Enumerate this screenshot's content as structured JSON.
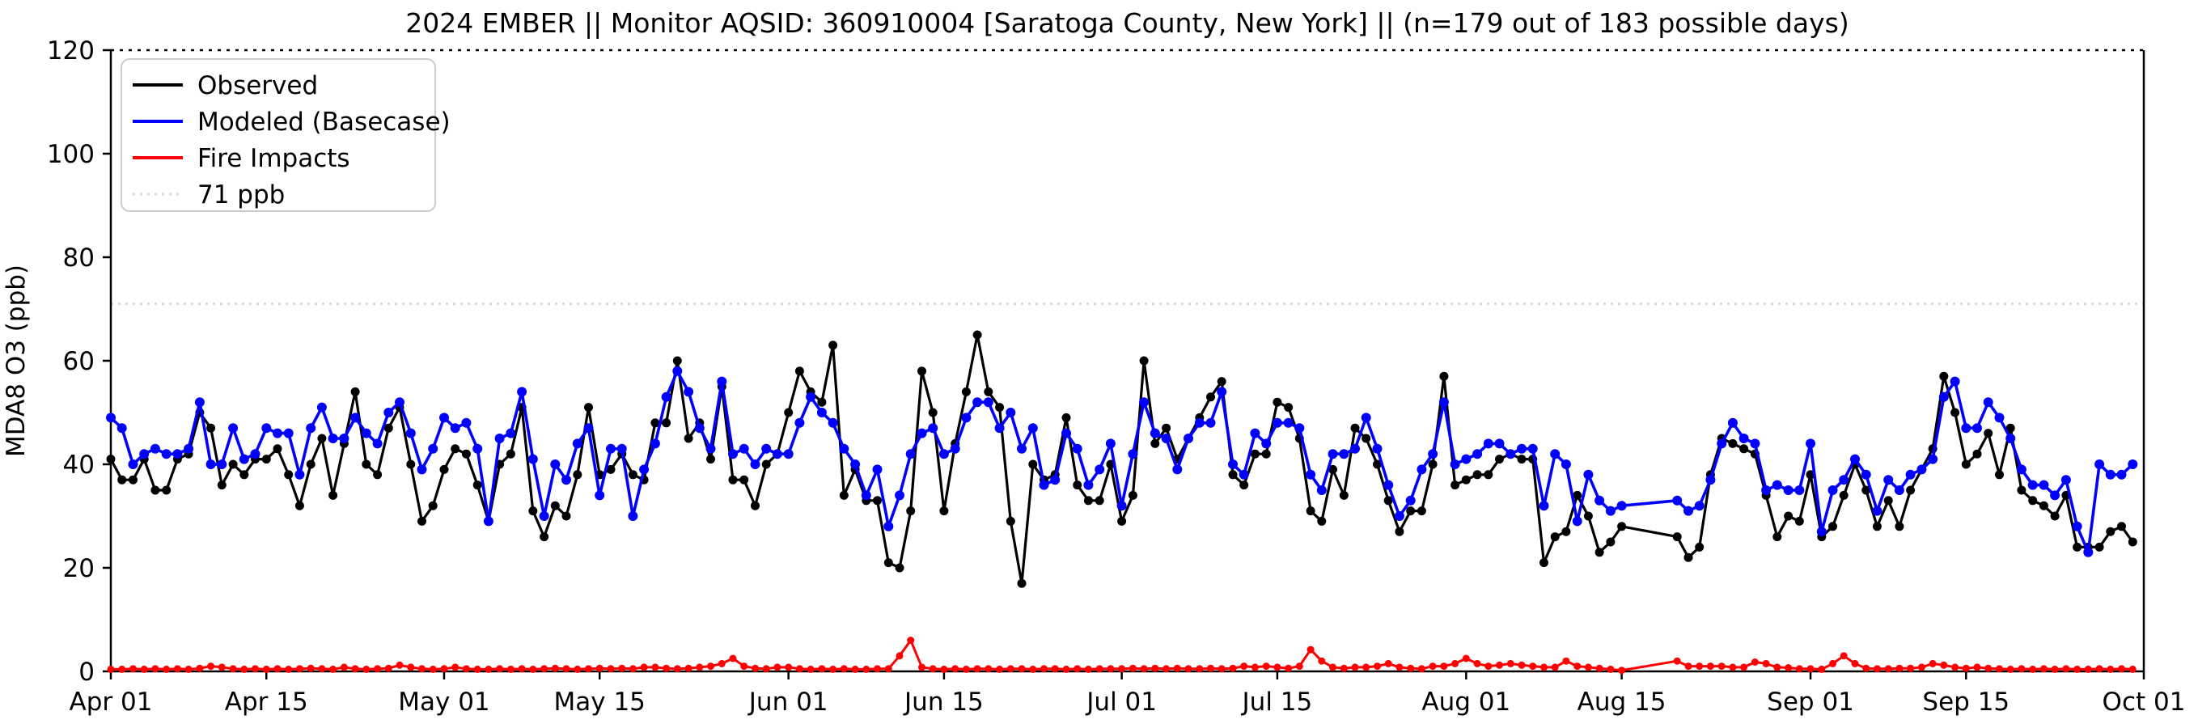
{
  "title": "2024 EMBER || Monitor AQSID: 360910004 [Saratoga County, New York] || (n=179 out of 183 possible days)",
  "axes": {
    "ylabel": "MDA8 O3 (ppb)",
    "ylim": [
      0,
      120
    ],
    "yticks": [
      0,
      20,
      40,
      60,
      80,
      100,
      120
    ],
    "xtick_labels": [
      "Apr 01",
      "Apr 15",
      "May 01",
      "May 15",
      "Jun 01",
      "Jun 15",
      "Jul 01",
      "Jul 15",
      "Aug 01",
      "Aug 15",
      "Sep 01",
      "Sep 15",
      "Oct 01"
    ],
    "xtick_days": [
      0,
      14,
      30,
      44,
      61,
      75,
      91,
      105,
      122,
      136,
      153,
      167,
      183
    ]
  },
  "legend": {
    "items": [
      {
        "label": "Observed",
        "color": "#000000",
        "style": "solid"
      },
      {
        "label": "Modeled (Basecase)",
        "color": "#0000ff",
        "style": "solid"
      },
      {
        "label": "Fire Impacts",
        "color": "#ff0000",
        "style": "solid"
      },
      {
        "label": "71 ppb",
        "color": "#d9d9d9",
        "style": "dotted"
      }
    ]
  },
  "threshold": {
    "value": 71,
    "label": "71 ppb",
    "color": "#d9d9d9"
  },
  "colors": {
    "observed": "#000000",
    "modeled": "#0000ff",
    "fire": "#ff0000",
    "axis": "#000000",
    "background": "#ffffff"
  },
  "chart_data": {
    "type": "line",
    "title": "2024 EMBER || Monitor AQSID: 360910004 [Saratoga County, New York] || (n=179 out of 183 possible days)",
    "xlabel": "",
    "ylabel": "MDA8 O3 (ppb)",
    "ylim": [
      0,
      120
    ],
    "x_unit": "day index from Apr 01 (0) to Oct 01 (183); data Apr 01 - Sep 30; null = missing day (n=179 of 183)",
    "legend_position": "upper left",
    "grid": false,
    "threshold_line": 71,
    "series": [
      {
        "name": "Observed",
        "color": "#000000",
        "marker": "circle",
        "values": [
          41,
          37,
          37,
          41,
          35,
          35,
          41,
          42,
          50,
          47,
          36,
          40,
          38,
          41,
          41,
          43,
          38,
          32,
          40,
          45,
          34,
          44,
          54,
          40,
          38,
          47,
          51,
          40,
          29,
          32,
          39,
          43,
          42,
          36,
          29,
          40,
          42,
          51,
          31,
          26,
          32,
          30,
          38,
          51,
          38,
          39,
          42,
          38,
          37,
          48,
          48,
          60,
          45,
          48,
          41,
          55,
          37,
          37,
          32,
          40,
          42,
          50,
          58,
          54,
          52,
          63,
          34,
          39,
          33,
          33,
          21,
          20,
          31,
          58,
          50,
          31,
          44,
          54,
          65,
          54,
          51,
          29,
          17,
          40,
          37,
          38,
          49,
          36,
          33,
          33,
          40,
          29,
          34,
          60,
          44,
          47,
          41,
          45,
          49,
          53,
          56,
          38,
          36,
          42,
          42,
          52,
          51,
          45,
          31,
          29,
          39,
          34,
          47,
          45,
          40,
          33,
          27,
          31,
          31,
          40,
          57,
          36,
          37,
          38,
          38,
          41,
          42,
          41,
          41,
          21,
          26,
          27,
          34,
          30,
          23,
          25,
          28,
          null,
          null,
          null,
          null,
          26,
          22,
          24,
          38,
          45,
          44,
          43,
          42,
          34,
          26,
          30,
          29,
          38,
          26,
          28,
          34,
          40,
          35,
          28,
          33,
          28,
          35,
          39,
          43,
          57,
          50,
          40,
          42,
          46,
          38,
          47,
          35,
          33,
          32,
          30,
          34,
          24,
          24,
          24,
          27,
          28,
          25
        ]
      },
      {
        "name": "Modeled (Basecase)",
        "color": "#0000ff",
        "marker": "circle",
        "values": [
          49,
          47,
          40,
          42,
          43,
          42,
          42,
          43,
          52,
          40,
          40,
          47,
          41,
          42,
          47,
          46,
          46,
          38,
          47,
          51,
          45,
          45,
          49,
          46,
          44,
          50,
          52,
          46,
          39,
          43,
          49,
          47,
          48,
          43,
          29,
          45,
          46,
          54,
          41,
          30,
          40,
          37,
          44,
          47,
          34,
          43,
          43,
          30,
          39,
          44,
          53,
          58,
          54,
          47,
          43,
          56,
          42,
          43,
          40,
          43,
          42,
          42,
          48,
          53,
          50,
          48,
          43,
          40,
          34,
          39,
          28,
          34,
          42,
          46,
          47,
          42,
          43,
          49,
          52,
          52,
          47,
          50,
          43,
          47,
          36,
          37,
          46,
          43,
          36,
          39,
          44,
          32,
          42,
          52,
          46,
          45,
          39,
          45,
          48,
          48,
          54,
          40,
          38,
          46,
          44,
          48,
          48,
          47,
          38,
          35,
          42,
          42,
          43,
          49,
          43,
          36,
          30,
          33,
          39,
          42,
          52,
          40,
          41,
          42,
          44,
          44,
          42,
          43,
          43,
          32,
          42,
          40,
          29,
          38,
          33,
          31,
          32,
          null,
          null,
          null,
          null,
          33,
          31,
          32,
          37,
          44,
          48,
          45,
          44,
          35,
          36,
          35,
          35,
          44,
          27,
          35,
          37,
          41,
          38,
          31,
          37,
          35,
          38,
          39,
          41,
          53,
          56,
          47,
          47,
          52,
          49,
          45,
          39,
          36,
          36,
          34,
          37,
          28,
          23,
          40,
          38,
          38,
          40
        ]
      },
      {
        "name": "Fire Impacts",
        "color": "#ff0000",
        "marker": "circle",
        "values": [
          0.4,
          0.4,
          0.5,
          0.4,
          0.5,
          0.4,
          0.5,
          0.4,
          0.6,
          1.0,
          0.8,
          0.5,
          0.4,
          0.5,
          0.4,
          0.5,
          0.4,
          0.5,
          0.6,
          0.5,
          0.4,
          0.8,
          0.5,
          0.4,
          0.5,
          0.6,
          1.2,
          0.8,
          0.5,
          0.4,
          0.5,
          0.8,
          0.5,
          0.4,
          0.4,
          0.5,
          0.4,
          0.5,
          0.4,
          0.5,
          0.6,
          0.5,
          0.4,
          0.5,
          0.6,
          0.5,
          0.6,
          0.5,
          0.8,
          0.8,
          0.6,
          0.5,
          0.6,
          0.8,
          1.0,
          1.5,
          2.5,
          1.0,
          0.6,
          0.5,
          0.8,
          0.8,
          0.5,
          0.4,
          0.5,
          0.4,
          0.5,
          0.4,
          0.4,
          0.5,
          0.5,
          3.0,
          6.0,
          0.8,
          0.5,
          0.4,
          0.5,
          0.4,
          0.5,
          0.5,
          0.4,
          0.5,
          0.5,
          0.4,
          0.5,
          0.5,
          0.4,
          0.5,
          0.4,
          0.5,
          0.5,
          0.5,
          0.6,
          0.5,
          0.6,
          0.5,
          0.6,
          0.5,
          0.5,
          0.6,
          0.5,
          0.6,
          1.0,
          0.8,
          1.0,
          0.8,
          0.6,
          1.0,
          4.2,
          2.0,
          0.8,
          0.6,
          0.8,
          0.8,
          1.0,
          1.5,
          0.8,
          0.6,
          0.5,
          1.0,
          1.0,
          1.5,
          2.5,
          1.5,
          1.0,
          1.2,
          1.5,
          1.2,
          1.0,
          0.8,
          0.8,
          2.0,
          1.0,
          0.8,
          0.6,
          0.4,
          0.2,
          null,
          null,
          null,
          null,
          2.0,
          1.0,
          1.0,
          1.0,
          1.0,
          0.8,
          0.8,
          1.8,
          1.5,
          0.8,
          0.7,
          0.5,
          0.5,
          0.4,
          1.5,
          3.0,
          1.5,
          0.6,
          0.5,
          0.5,
          0.6,
          0.6,
          0.8,
          1.5,
          1.2,
          0.8,
          0.6,
          0.8,
          0.6,
          0.5,
          0.4,
          0.5,
          0.4,
          0.5,
          0.4,
          0.5,
          0.4,
          0.4,
          0.5,
          0.4,
          0.5,
          0.4
        ]
      }
    ]
  }
}
